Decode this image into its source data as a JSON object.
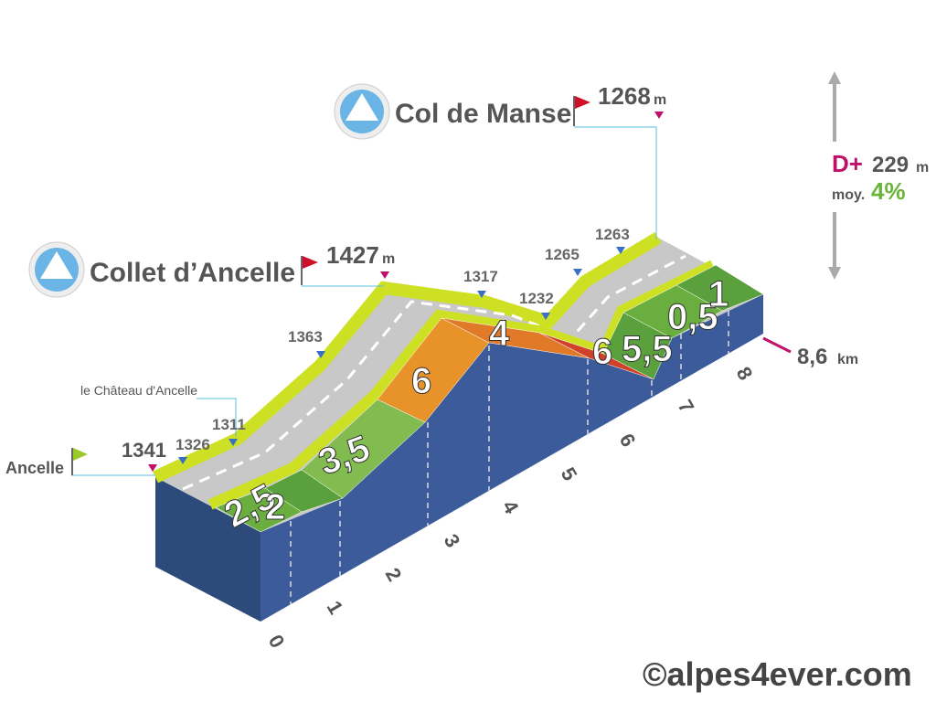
{
  "passes": [
    {
      "name": "Collet d’Ancelle",
      "elevation": "1427",
      "unit": "m"
    },
    {
      "name": "Col de Manse",
      "elevation": "1268",
      "unit": "m"
    }
  ],
  "start": {
    "name": "Ancelle",
    "elevation": "1341"
  },
  "landmark": "le Château d'Ancelle",
  "waypoints": [
    "1326",
    "1311",
    "1363",
    "1317",
    "1232",
    "1265",
    "1263"
  ],
  "distance": {
    "value": "8,6",
    "unit": "km"
  },
  "climb": {
    "label": "D+",
    "value": "229",
    "unit": "m",
    "avg_label": "moy.",
    "avg": "4%"
  },
  "km_marks": [
    "0",
    "1",
    "2",
    "3",
    "4",
    "5",
    "6",
    "7",
    "8"
  ],
  "gradients": [
    "2,5",
    "2",
    "3,5",
    "6",
    "4",
    "6",
    "5,5",
    "0,5",
    "1"
  ],
  "watermark": "©alpes4ever.com"
}
